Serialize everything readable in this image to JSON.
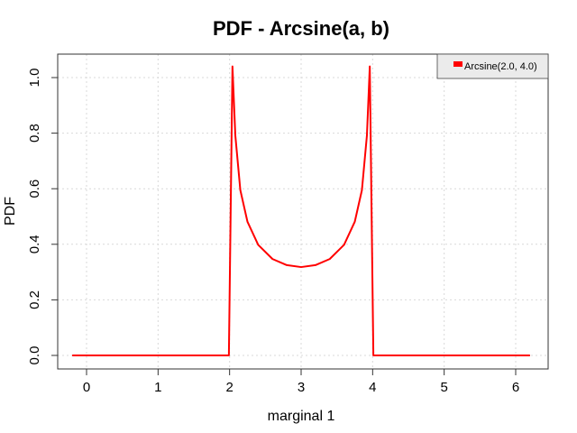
{
  "chart_data": {
    "type": "line",
    "title": "PDF - Arcsine(a, b)",
    "xlabel": "marginal 1",
    "ylabel": "PDF",
    "xlim": [
      -0.2,
      6.2
    ],
    "ylim": [
      0.0,
      1.04
    ],
    "xticks": [
      0,
      1,
      2,
      3,
      4,
      5,
      6
    ],
    "xtick_labels": [
      "0",
      "1",
      "2",
      "3",
      "4",
      "5",
      "6"
    ],
    "yticks": [
      0.0,
      0.2,
      0.4,
      0.6,
      0.8,
      1.0
    ],
    "ytick_labels": [
      "0.0",
      "0.2",
      "0.4",
      "0.6",
      "0.8",
      "1.0"
    ],
    "grid": true,
    "legend_position": "top-right",
    "series": [
      {
        "name": "Arcsine(2.0, 4.0)",
        "color": "#ff0000",
        "x": [
          -0.2,
          1.99,
          2.04,
          2.08,
          2.15,
          2.25,
          2.4,
          2.6,
          2.8,
          3.0,
          3.2,
          3.4,
          3.6,
          3.75,
          3.85,
          3.92,
          3.96,
          4.01,
          6.2
        ],
        "y": [
          0.0,
          0.0,
          1.04,
          0.792,
          0.595,
          0.481,
          0.398,
          0.347,
          0.325,
          0.318,
          0.325,
          0.347,
          0.398,
          0.481,
          0.595,
          0.792,
          1.04,
          0.0,
          0.0
        ]
      }
    ]
  }
}
